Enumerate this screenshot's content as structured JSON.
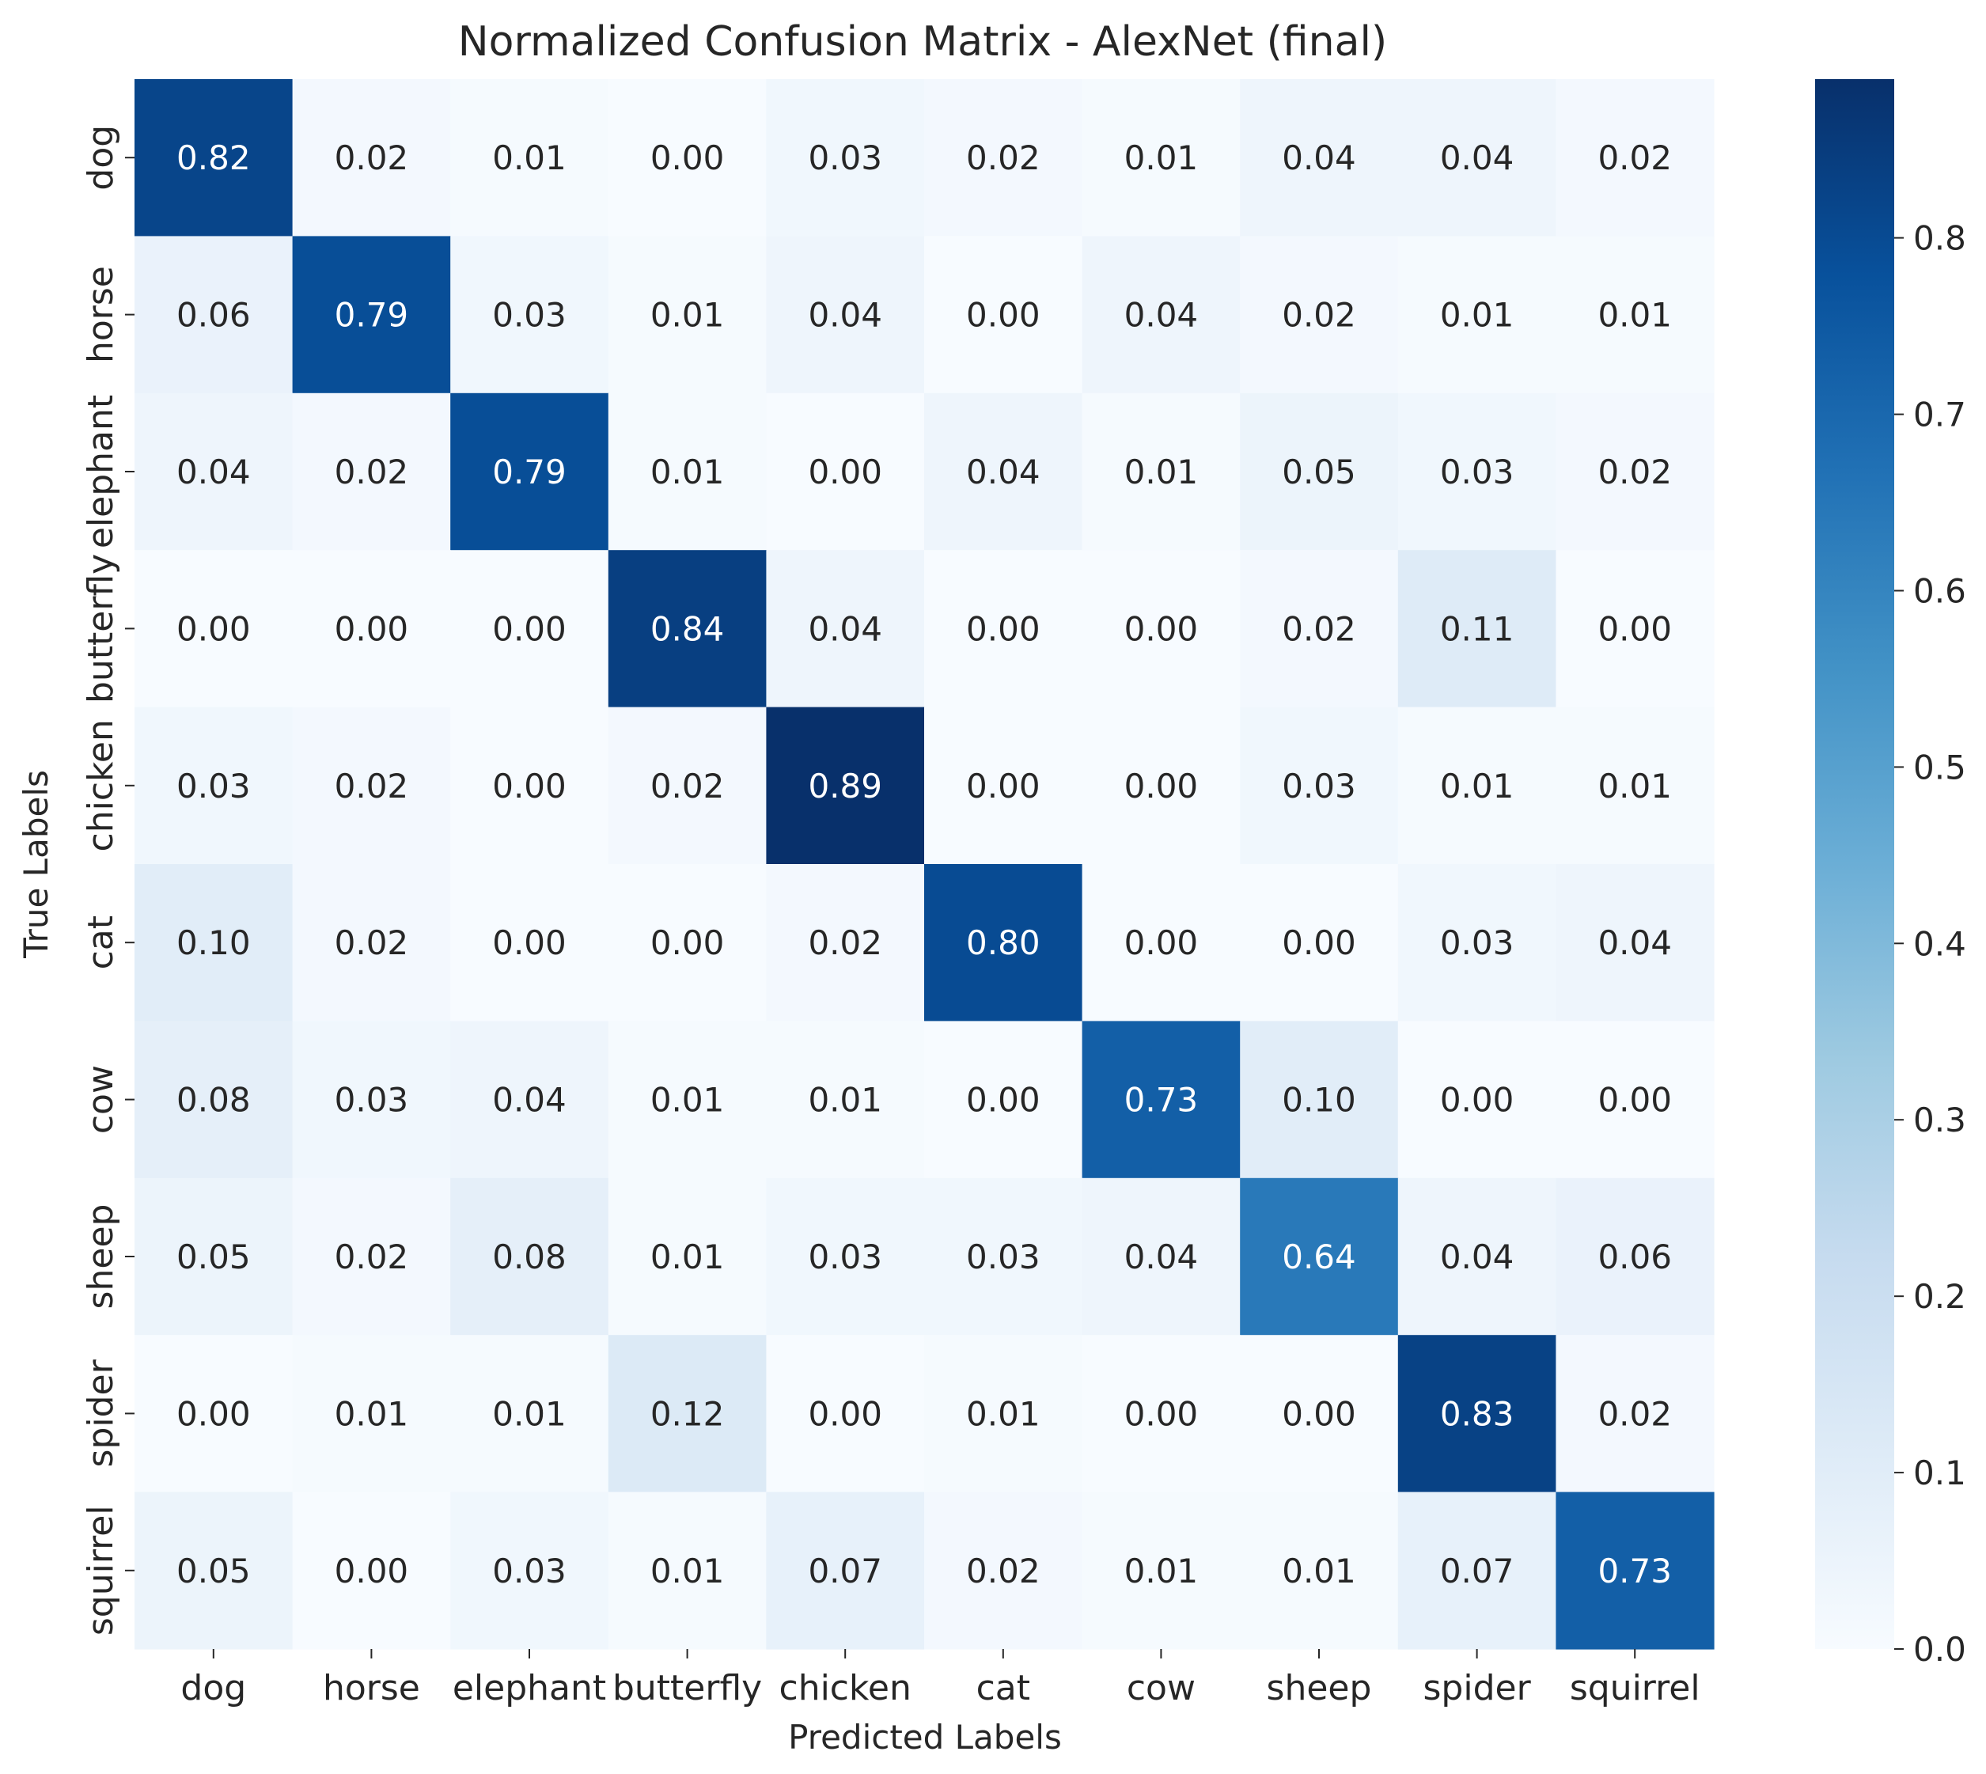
{
  "chart_data": {
    "type": "heatmap",
    "title": "Normalized Confusion Matrix - AlexNet (final)",
    "xlabel": "Predicted Labels",
    "ylabel": "True Labels",
    "x_categories": [
      "dog",
      "horse",
      "elephant",
      "butterfly",
      "chicken",
      "cat",
      "cow",
      "sheep",
      "spider",
      "squirrel"
    ],
    "y_categories": [
      "dog",
      "horse",
      "elephant",
      "butterfly",
      "chicken",
      "cat",
      "cow",
      "sheep",
      "spider",
      "squirrel"
    ],
    "values": [
      [
        0.82,
        0.02,
        0.01,
        0.0,
        0.03,
        0.02,
        0.01,
        0.04,
        0.04,
        0.02
      ],
      [
        0.06,
        0.79,
        0.03,
        0.01,
        0.04,
        0.0,
        0.04,
        0.02,
        0.01,
        0.01
      ],
      [
        0.04,
        0.02,
        0.79,
        0.01,
        0.0,
        0.04,
        0.01,
        0.05,
        0.03,
        0.02
      ],
      [
        0.0,
        0.0,
        0.0,
        0.84,
        0.04,
        0.0,
        0.0,
        0.02,
        0.11,
        0.0
      ],
      [
        0.03,
        0.02,
        0.0,
        0.02,
        0.89,
        0.0,
        0.0,
        0.03,
        0.01,
        0.01
      ],
      [
        0.1,
        0.02,
        0.0,
        0.0,
        0.02,
        0.8,
        0.0,
        0.0,
        0.03,
        0.04
      ],
      [
        0.08,
        0.03,
        0.04,
        0.01,
        0.01,
        0.0,
        0.73,
        0.1,
        0.0,
        0.0
      ],
      [
        0.05,
        0.02,
        0.08,
        0.01,
        0.03,
        0.03,
        0.04,
        0.64,
        0.04,
        0.06
      ],
      [
        0.0,
        0.01,
        0.01,
        0.12,
        0.0,
        0.01,
        0.0,
        0.0,
        0.83,
        0.02
      ],
      [
        0.05,
        0.0,
        0.03,
        0.01,
        0.07,
        0.02,
        0.01,
        0.01,
        0.07,
        0.73
      ]
    ],
    "value_format": "0.00",
    "colormap": "Blues",
    "colorbar": {
      "vmin": 0.0,
      "vmax": 0.89,
      "ticks": [
        0.0,
        0.1,
        0.2,
        0.3,
        0.4,
        0.5,
        0.6,
        0.7,
        0.8
      ],
      "tick_labels": [
        "0.0",
        "0.1",
        "0.2",
        "0.3",
        "0.4",
        "0.5",
        "0.6",
        "0.7",
        "0.8"
      ]
    }
  },
  "colors": {
    "background": "#ffffff",
    "text": "#262626",
    "annotation_dark": "#262626",
    "annotation_light": "#ffffff",
    "blues": [
      "#f7fbff",
      "#deebf7",
      "#c6dbef",
      "#9ecae1",
      "#6baed6",
      "#4292c6",
      "#2171b5",
      "#08519c",
      "#08306b"
    ]
  }
}
